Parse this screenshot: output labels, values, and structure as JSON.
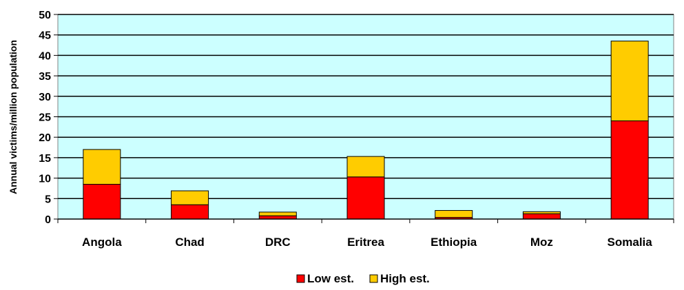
{
  "chart_data": {
    "type": "bar",
    "stacked": true,
    "title": "",
    "xlabel": "",
    "ylabel": "Annual victims/million population",
    "ylim": [
      0,
      50
    ],
    "yticks": [
      0,
      5,
      10,
      15,
      20,
      25,
      30,
      35,
      40,
      45,
      50
    ],
    "grid": true,
    "legend": "bottom",
    "plot_background": "#CCFFFF",
    "categories": [
      "Angola",
      "Chad",
      "DRC",
      "Eritrea",
      "Ethiopia",
      "Moz",
      "Somalia"
    ],
    "series": [
      {
        "name": "Low est.",
        "color": "#FF0000",
        "values": [
          8.5,
          3.5,
          0.8,
          10.3,
          0.4,
          1.3,
          24.0
        ]
      },
      {
        "name": "High est.",
        "color": "#FFCC00",
        "values": [
          8.5,
          3.4,
          0.9,
          5.0,
          1.7,
          0.5,
          19.5
        ]
      }
    ]
  }
}
